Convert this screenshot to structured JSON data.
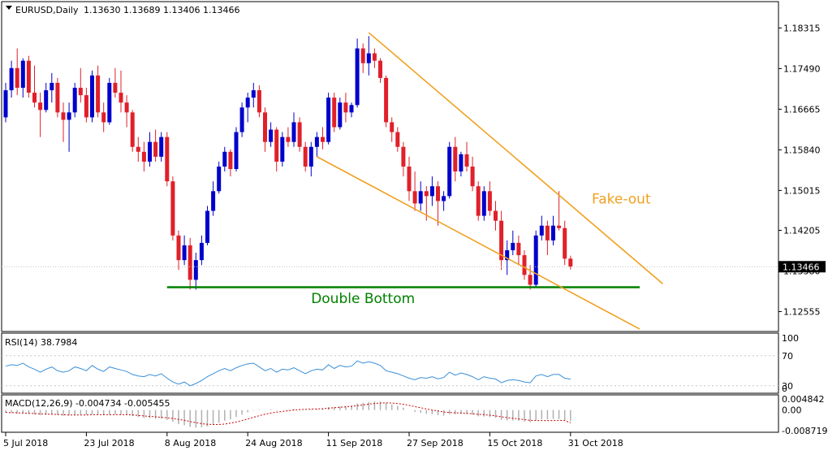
{
  "header": {
    "symbol": "EURUSD,Daily",
    "ohlc": "1.13630 1.13689 1.13406 1.13466"
  },
  "colors": {
    "bull": "#0000cc",
    "bear": "#e0202a",
    "trendline": "#f0a020",
    "support": "#008000",
    "rsi": "#3a8fd8",
    "macd_signal": "#cc0000",
    "macd_hist": "#b0b0b0",
    "grid": "#000000",
    "price_box": "#000000"
  },
  "chart_data": [
    {
      "type": "candlestick",
      "name": "price",
      "ylim": [
        1.1215,
        1.1885
      ],
      "yticks": [
        "1.18315",
        "1.17490",
        "1.16665",
        "1.15840",
        "1.15015",
        "1.14205",
        "1.13380",
        "1.12555"
      ],
      "ytick_values": [
        1.18315,
        1.1749,
        1.16665,
        1.1584,
        1.15015,
        1.14205,
        1.1338,
        1.12555
      ],
      "current_price": "1.13466",
      "current_price_value": 1.13466,
      "xticks": [
        "5 Jul 2018",
        "23 Jul 2018",
        "8 Aug 2018",
        "24 Aug 2018",
        "11 Sep 2018",
        "27 Sep 2018",
        "15 Oct 2018",
        "31 Oct 2018"
      ],
      "xtick_bar_index": [
        0,
        14,
        28,
        42,
        56,
        70,
        84,
        98
      ],
      "candles": [
        [
          1.165,
          1.172,
          1.164,
          1.1705
        ],
        [
          1.1705,
          1.1765,
          1.169,
          1.175
        ],
        [
          1.175,
          1.179,
          1.1695,
          1.171
        ],
        [
          1.171,
          1.177,
          1.169,
          1.1765
        ],
        [
          1.1765,
          1.1775,
          1.169,
          1.17
        ],
        [
          1.17,
          1.1755,
          1.167,
          1.168
        ],
        [
          1.168,
          1.17,
          1.161,
          1.1665
        ],
        [
          1.1665,
          1.172,
          1.166,
          1.1705
        ],
        [
          1.1705,
          1.174,
          1.168,
          1.172
        ],
        [
          1.172,
          1.173,
          1.165,
          1.166
        ],
        [
          1.166,
          1.168,
          1.16,
          1.1645
        ],
        [
          1.1645,
          1.168,
          1.158,
          1.166
        ],
        [
          1.166,
          1.172,
          1.165,
          1.171
        ],
        [
          1.171,
          1.175,
          1.168,
          1.1695
        ],
        [
          1.1695,
          1.171,
          1.164,
          1.165
        ],
        [
          1.165,
          1.1745,
          1.164,
          1.1735
        ],
        [
          1.1735,
          1.1755,
          1.165,
          1.166
        ],
        [
          1.166,
          1.168,
          1.162,
          1.164
        ],
        [
          1.164,
          1.173,
          1.1635,
          1.172
        ],
        [
          1.172,
          1.175,
          1.169,
          1.17
        ],
        [
          1.17,
          1.1745,
          1.166,
          1.168
        ],
        [
          1.168,
          1.1695,
          1.163,
          1.166
        ],
        [
          1.166,
          1.1665,
          1.158,
          1.159
        ],
        [
          1.159,
          1.161,
          1.156,
          1.158
        ],
        [
          1.158,
          1.16,
          1.154,
          1.156
        ],
        [
          1.156,
          1.162,
          1.155,
          1.16
        ],
        [
          1.16,
          1.1625,
          1.156,
          1.157
        ],
        [
          1.157,
          1.162,
          1.156,
          1.161
        ],
        [
          1.161,
          1.162,
          1.151,
          1.152
        ],
        [
          1.152,
          1.153,
          1.14,
          1.141
        ],
        [
          1.141,
          1.142,
          1.134,
          1.136
        ],
        [
          1.136,
          1.141,
          1.135,
          1.139
        ],
        [
          1.139,
          1.1405,
          1.13,
          1.132
        ],
        [
          1.132,
          1.1375,
          1.13,
          1.136
        ],
        [
          1.136,
          1.141,
          1.135,
          1.1395
        ],
        [
          1.1395,
          1.147,
          1.139,
          1.146
        ],
        [
          1.146,
          1.152,
          1.145,
          1.15
        ],
        [
          1.15,
          1.156,
          1.1495,
          1.155
        ],
        [
          1.155,
          1.159,
          1.154,
          1.158
        ],
        [
          1.158,
          1.1585,
          1.153,
          1.1545
        ],
        [
          1.1545,
          1.163,
          1.154,
          1.162
        ],
        [
          1.162,
          1.168,
          1.161,
          1.167
        ],
        [
          1.167,
          1.17,
          1.164,
          1.169
        ],
        [
          1.169,
          1.172,
          1.167,
          1.1705
        ],
        [
          1.1705,
          1.1715,
          1.165,
          1.166
        ],
        [
          1.166,
          1.167,
          1.158,
          1.16
        ],
        [
          1.16,
          1.164,
          1.159,
          1.1625
        ],
        [
          1.1625,
          1.163,
          1.154,
          1.156
        ],
        [
          1.156,
          1.162,
          1.155,
          1.161
        ],
        [
          1.161,
          1.163,
          1.159,
          1.16
        ],
        [
          1.16,
          1.166,
          1.159,
          1.164
        ],
        [
          1.164,
          1.165,
          1.158,
          1.159
        ],
        [
          1.159,
          1.16,
          1.154,
          1.155
        ],
        [
          1.155,
          1.16,
          1.153,
          1.159
        ],
        [
          1.159,
          1.162,
          1.157,
          1.161
        ],
        [
          1.161,
          1.163,
          1.1585,
          1.16
        ],
        [
          1.16,
          1.17,
          1.1595,
          1.169
        ],
        [
          1.169,
          1.17,
          1.162,
          1.163
        ],
        [
          1.163,
          1.169,
          1.1625,
          1.168
        ],
        [
          1.168,
          1.17,
          1.164,
          1.166
        ],
        [
          1.166,
          1.168,
          1.165,
          1.1675
        ],
        [
          1.1675,
          1.181,
          1.167,
          1.179
        ],
        [
          1.179,
          1.18,
          1.174,
          1.176
        ],
        [
          1.176,
          1.1815,
          1.1735,
          1.178
        ],
        [
          1.178,
          1.179,
          1.175,
          1.1765
        ],
        [
          1.1765,
          1.177,
          1.172,
          1.173
        ],
        [
          1.173,
          1.1735,
          1.163,
          1.164
        ],
        [
          1.164,
          1.165,
          1.16,
          1.162
        ],
        [
          1.162,
          1.163,
          1.158,
          1.159
        ],
        [
          1.159,
          1.16,
          1.153,
          1.155
        ],
        [
          1.155,
          1.157,
          1.148,
          1.15
        ],
        [
          1.15,
          1.154,
          1.146,
          1.1475
        ],
        [
          1.1475,
          1.152,
          1.146,
          1.15
        ],
        [
          1.15,
          1.151,
          1.144,
          1.149
        ],
        [
          1.149,
          1.153,
          1.147,
          1.151
        ],
        [
          1.151,
          1.152,
          1.143,
          1.148
        ],
        [
          1.148,
          1.15,
          1.146,
          1.149
        ],
        [
          1.149,
          1.16,
          1.1485,
          1.159
        ],
        [
          1.159,
          1.161,
          1.152,
          1.154
        ],
        [
          1.154,
          1.158,
          1.153,
          1.1575
        ],
        [
          1.1575,
          1.16,
          1.154,
          1.155
        ],
        [
          1.155,
          1.157,
          1.15,
          1.151
        ],
        [
          1.151,
          1.152,
          1.144,
          1.145
        ],
        [
          1.145,
          1.151,
          1.144,
          1.15
        ],
        [
          1.15,
          1.152,
          1.145,
          1.146
        ],
        [
          1.146,
          1.148,
          1.142,
          1.144
        ],
        [
          1.144,
          1.146,
          1.134,
          1.136
        ],
        [
          1.136,
          1.14,
          1.133,
          1.138
        ],
        [
          1.138,
          1.142,
          1.137,
          1.1395
        ],
        [
          1.1395,
          1.141,
          1.135,
          1.137
        ],
        [
          1.137,
          1.138,
          1.132,
          1.133
        ],
        [
          1.133,
          1.135,
          1.13,
          1.131
        ],
        [
          1.131,
          1.142,
          1.1305,
          1.141
        ],
        [
          1.141,
          1.145,
          1.14,
          1.143
        ],
        [
          1.143,
          1.144,
          1.137,
          1.14
        ],
        [
          1.14,
          1.145,
          1.139,
          1.143
        ],
        [
          1.143,
          1.15,
          1.142,
          1.1425
        ],
        [
          1.1425,
          1.144,
          1.135,
          1.1363
        ],
        [
          1.1363,
          1.1369,
          1.1341,
          1.1347
        ]
      ],
      "annotations": [
        {
          "text": "Fake-out",
          "type": "label",
          "bar": 100,
          "price": 1.1485
        },
        {
          "text": "Double Bottom",
          "type": "label",
          "bar": 62,
          "price": 1.1283
        },
        {
          "type": "hline",
          "name": "double-bottom-support",
          "price": 1.1305,
          "from_bar": 28,
          "to_bar": 110
        },
        {
          "type": "trendline",
          "name": "upper-channel-line",
          "points": [
            [
              63,
              1.1822
            ],
            [
              114,
              1.1312
            ]
          ]
        },
        {
          "type": "trendline",
          "name": "lower-channel-line",
          "points": [
            [
              54,
              1.157
            ],
            [
              110,
              1.122
            ]
          ]
        }
      ]
    },
    {
      "type": "line",
      "name": "RSI(14)",
      "label": "RSI(14) 38.7984",
      "ylim": [
        20,
        100
      ],
      "yticks": [
        "100",
        "70",
        "30",
        "0"
      ],
      "ytick_values": [
        100,
        70,
        30,
        0
      ],
      "values": [
        56,
        58,
        57,
        60,
        55,
        52,
        48,
        52,
        55,
        50,
        48,
        50,
        55,
        53,
        50,
        57,
        52,
        49,
        55,
        53,
        51,
        49,
        45,
        43,
        42,
        45,
        43,
        46,
        40,
        35,
        32,
        35,
        30,
        33,
        37,
        42,
        46,
        50,
        53,
        50,
        54,
        57,
        59,
        60,
        55,
        50,
        53,
        48,
        52,
        51,
        54,
        50,
        46,
        50,
        52,
        51,
        58,
        53,
        57,
        55,
        56,
        63,
        60,
        62,
        60,
        57,
        50,
        48,
        46,
        43,
        40,
        38,
        41,
        40,
        42,
        39,
        41,
        48,
        44,
        47,
        45,
        42,
        38,
        42,
        40,
        39,
        34,
        37,
        38,
        37,
        35,
        34,
        43,
        45,
        42,
        45,
        45,
        40,
        38.8
      ]
    },
    {
      "type": "histogram_line",
      "name": "MACD(12,26,9)",
      "label": "MACD(12,26,9) -0.004734 -0.005455",
      "ylim": [
        -0.0095,
        0.0065
      ],
      "yticks": [
        "0.004842",
        "0.00",
        "-0.008719"
      ],
      "ytick_values": [
        0.004842,
        0,
        -0.008719
      ],
      "histogram": [
        -0.001,
        -0.0012,
        -0.0015,
        -0.0013,
        -0.0016,
        -0.0019,
        -0.0022,
        -0.002,
        -0.0018,
        -0.0021,
        -0.0024,
        -0.0023,
        -0.002,
        -0.0019,
        -0.0021,
        -0.0018,
        -0.002,
        -0.0022,
        -0.002,
        -0.0019,
        -0.002,
        -0.0022,
        -0.0026,
        -0.003,
        -0.0034,
        -0.0035,
        -0.0037,
        -0.0037,
        -0.0042,
        -0.005,
        -0.006,
        -0.0065,
        -0.0072,
        -0.0075,
        -0.0074,
        -0.007,
        -0.0063,
        -0.0055,
        -0.0046,
        -0.004,
        -0.003,
        -0.002,
        -0.001,
        -0.0002,
        0.0002,
        0.0,
        0.0003,
        -0.0002,
        0.0,
        0.0002,
        0.0005,
        0.0004,
        0.0001,
        0.0002,
        0.0004,
        0.0005,
        0.0012,
        0.0012,
        0.0016,
        0.0017,
        0.0019,
        0.0028,
        0.0031,
        0.0035,
        0.0037,
        0.0036,
        0.003,
        0.0024,
        0.0018,
        0.001,
        0.0,
        -0.0008,
        -0.0012,
        -0.0016,
        -0.0018,
        -0.0022,
        -0.0024,
        -0.0018,
        -0.0018,
        -0.0017,
        -0.0017,
        -0.002,
        -0.0027,
        -0.0028,
        -0.003,
        -0.0033,
        -0.0042,
        -0.0044,
        -0.0045,
        -0.0046,
        -0.0049,
        -0.0052,
        -0.0044,
        -0.004,
        -0.004,
        -0.0038,
        -0.0038,
        -0.0044,
        -0.0047
      ],
      "signal": [
        -0.001,
        -0.0011,
        -0.0012,
        -0.0013,
        -0.0014,
        -0.0015,
        -0.0016,
        -0.0017,
        -0.0018,
        -0.0019,
        -0.002,
        -0.0021,
        -0.0021,
        -0.0021,
        -0.0021,
        -0.002,
        -0.002,
        -0.002,
        -0.002,
        -0.002,
        -0.002,
        -0.002,
        -0.0021,
        -0.0023,
        -0.0025,
        -0.0027,
        -0.0029,
        -0.0031,
        -0.0033,
        -0.0036,
        -0.004,
        -0.0044,
        -0.0049,
        -0.0054,
        -0.0058,
        -0.0061,
        -0.0062,
        -0.0062,
        -0.006,
        -0.0056,
        -0.0051,
        -0.0045,
        -0.0038,
        -0.0031,
        -0.0024,
        -0.0018,
        -0.0013,
        -0.0009,
        -0.0006,
        -0.0003,
        0.0,
        0.0002,
        0.0003,
        0.0004,
        0.0005,
        0.0006,
        0.0008,
        0.001,
        0.0012,
        0.0014,
        0.0016,
        0.0019,
        0.0022,
        0.0025,
        0.0028,
        0.003,
        0.0031,
        0.003,
        0.0028,
        0.0025,
        0.002,
        0.0015,
        0.001,
        0.0005,
        0.0,
        -0.0004,
        -0.0008,
        -0.001,
        -0.0012,
        -0.0013,
        -0.0014,
        -0.0016,
        -0.0018,
        -0.002,
        -0.0022,
        -0.0025,
        -0.0029,
        -0.0032,
        -0.0035,
        -0.0038,
        -0.0041,
        -0.0044,
        -0.0045,
        -0.0045,
        -0.0045,
        -0.0045,
        -0.0044,
        -0.0045,
        -0.005455
      ]
    }
  ]
}
